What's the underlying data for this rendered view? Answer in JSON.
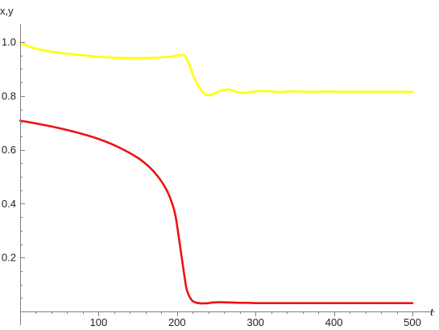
{
  "chart_data": {
    "type": "line",
    "title": "",
    "xlabel": "t",
    "ylabel": "x,y",
    "xlim": [
      0,
      505
    ],
    "ylim": [
      0,
      1.05
    ],
    "grid": false,
    "x_ticks": [
      100,
      200,
      300,
      400,
      500
    ],
    "y_ticks": [
      0.2,
      0.4,
      0.6,
      0.8,
      1.0
    ],
    "x_tick_labels": [
      "100",
      "200",
      "300",
      "400",
      "500"
    ],
    "y_tick_labels": [
      "0.2",
      "0.4",
      "0.6",
      "0.8",
      "1.0"
    ],
    "series": [
      {
        "color": "#ffff00",
        "x": [
          0,
          10,
          25,
          50,
          75,
          100,
          125,
          150,
          175,
          190,
          200,
          205,
          210,
          215,
          220,
          225,
          230,
          235,
          240,
          245,
          250,
          255,
          260,
          265,
          270,
          275,
          280,
          285,
          290,
          295,
          300,
          310,
          320,
          330,
          340,
          350,
          360,
          370,
          380,
          390,
          400,
          410,
          420,
          430,
          440,
          450,
          460,
          470,
          480,
          490,
          500
        ],
        "y": [
          0.998,
          0.985,
          0.972,
          0.96,
          0.952,
          0.945,
          0.941,
          0.94,
          0.942,
          0.945,
          0.95,
          0.952,
          0.948,
          0.92,
          0.88,
          0.85,
          0.825,
          0.808,
          0.802,
          0.805,
          0.812,
          0.818,
          0.822,
          0.824,
          0.821,
          0.816,
          0.812,
          0.811,
          0.812,
          0.815,
          0.817,
          0.818,
          0.816,
          0.814,
          0.816,
          0.817,
          0.816,
          0.815,
          0.815,
          0.816,
          0.816,
          0.815,
          0.815,
          0.815,
          0.815,
          0.815,
          0.815,
          0.815,
          0.815,
          0.815,
          0.815
        ]
      },
      {
        "color": "#ee1111",
        "x": [
          0,
          10,
          25,
          50,
          75,
          100,
          125,
          150,
          165,
          175,
          185,
          190,
          195,
          198,
          200,
          202,
          205,
          208,
          210,
          212,
          215,
          218,
          220,
          225,
          230,
          235,
          240,
          245,
          250,
          260,
          270,
          280,
          290,
          300,
          320,
          340,
          360,
          380,
          400,
          420,
          440,
          460,
          480,
          500
        ],
        "y": [
          0.708,
          0.703,
          0.695,
          0.68,
          0.662,
          0.64,
          0.61,
          0.57,
          0.535,
          0.503,
          0.46,
          0.43,
          0.39,
          0.355,
          0.32,
          0.28,
          0.22,
          0.16,
          0.12,
          0.085,
          0.06,
          0.045,
          0.038,
          0.032,
          0.03,
          0.03,
          0.031,
          0.033,
          0.034,
          0.034,
          0.033,
          0.032,
          0.032,
          0.031,
          0.031,
          0.031,
          0.031,
          0.031,
          0.031,
          0.031,
          0.031,
          0.031,
          0.031,
          0.031
        ]
      }
    ]
  }
}
